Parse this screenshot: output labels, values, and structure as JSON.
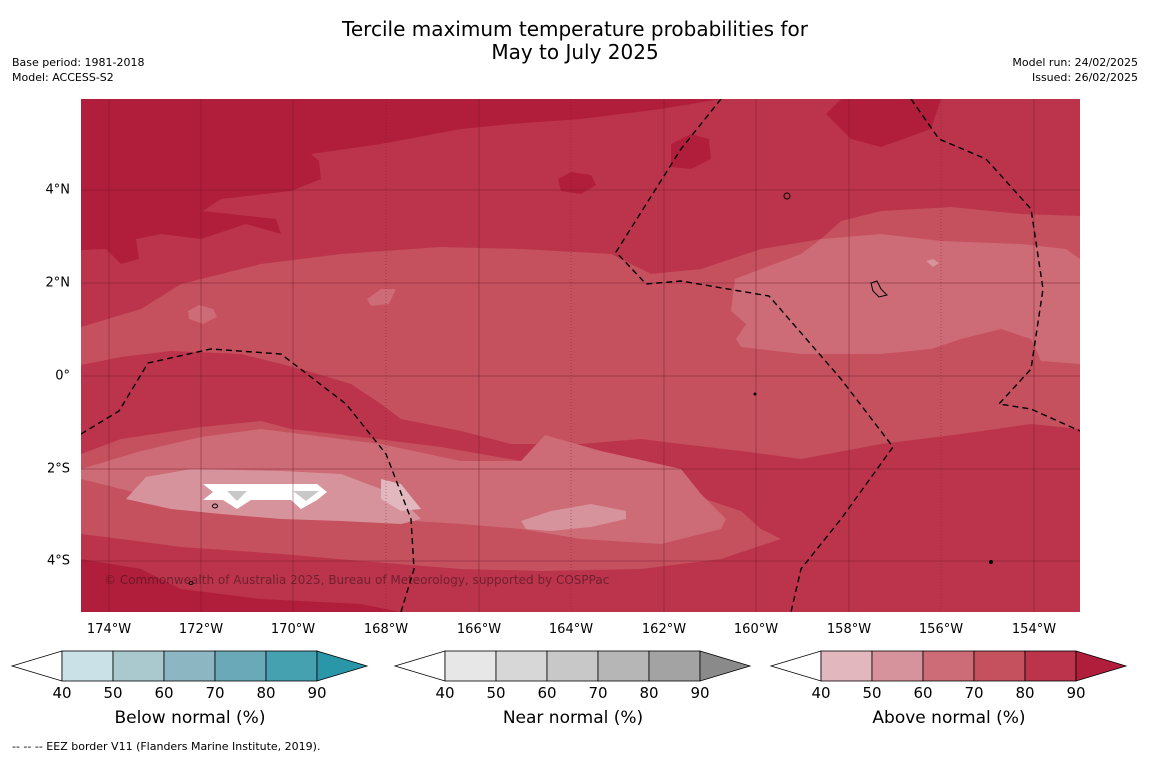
{
  "header": {
    "title_line1": "Tercile maximum temperature probabilities for",
    "title_line2": "May to July 2025",
    "base_period": "Base period: 1981-2018",
    "model": "Model: ACCESS-S2",
    "model_run": "Model run: 24/02/2025",
    "issued": "Issued: 26/02/2025"
  },
  "map": {
    "lat_labels": [
      "4°N",
      "2°N",
      "0°",
      "2°S",
      "4°S"
    ],
    "lon_labels": [
      "174°W",
      "172°W",
      "170°W",
      "168°W",
      "166°W",
      "164°W",
      "162°W",
      "160°W",
      "158°W",
      "156°W",
      "154°W"
    ],
    "copyright": "© Commonwealth of Australia 2025, Bureau of Meteorology, supported by COSPPac",
    "colors": {
      "ge90": "#b11e3b",
      "80-90": "#bc344b",
      "70-80": "#c5505e",
      "60-70": "#cd6b76",
      "50-60": "#d7939b",
      "40-50": "#e2b7bd",
      "near_normal_70_80": "#c8c8c8",
      "eez_line": "#000000"
    }
  },
  "legends": [
    {
      "label": "Below normal (%)",
      "ticks": [
        "40",
        "50",
        "60",
        "70",
        "80",
        "90"
      ],
      "colors": [
        "#ffffff",
        "#c9e1e7",
        "#a9c9ce",
        "#8bb6c2",
        "#6aaab8",
        "#45a0b0",
        "#2a97a9"
      ]
    },
    {
      "label": "Near normal (%)",
      "ticks": [
        "40",
        "50",
        "60",
        "70",
        "80",
        "90"
      ],
      "colors": [
        "#ffffff",
        "#e7e7e7",
        "#d7d7d7",
        "#c8c8c8",
        "#b6b6b6",
        "#a3a3a3",
        "#8a8a8a"
      ]
    },
    {
      "label": "Above normal (%)",
      "ticks": [
        "40",
        "50",
        "60",
        "70",
        "80",
        "90"
      ],
      "colors": [
        "#ffffff",
        "#e2b7bd",
        "#d7939b",
        "#cd6b76",
        "#c5505e",
        "#bc344b",
        "#b11e3b"
      ]
    }
  ],
  "footnote": "--  --  -- EEZ border V11 (Flanders Marine Institute, 2019)."
}
